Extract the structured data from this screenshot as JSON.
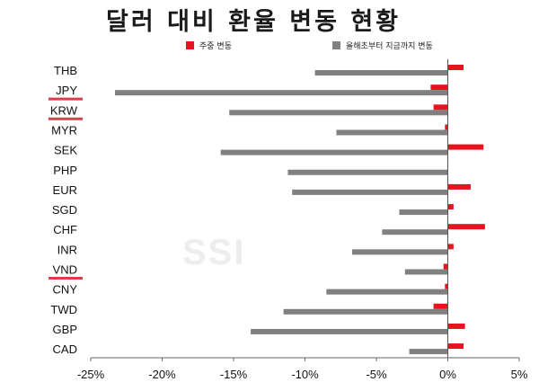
{
  "chart_data": {
    "type": "bar",
    "orientation": "horizontal",
    "title": "달러 대비 환율 변동 현황",
    "categories": [
      "THB",
      "JPY",
      "KRW",
      "MYR",
      "SEK",
      "PHP",
      "EUR",
      "SGD",
      "CHF",
      "INR",
      "VND",
      "CNY",
      "TWD",
      "GBP",
      "CAD"
    ],
    "highlighted_categories": [
      "JPY",
      "KRW",
      "VND"
    ],
    "series": [
      {
        "name": "주중 변동",
        "color": "#e8131e",
        "values": [
          1.1,
          -1.2,
          -1.0,
          -0.2,
          2.5,
          0.0,
          1.6,
          0.4,
          2.6,
          0.4,
          -0.3,
          -0.2,
          -1.0,
          1.2,
          1.1
        ]
      },
      {
        "name": "올해초부터 지금까지 변동",
        "color": "#808080",
        "values": [
          -9.3,
          -23.3,
          -15.3,
          -7.8,
          -15.9,
          -11.2,
          -10.9,
          -3.4,
          -4.6,
          -6.7,
          -3.0,
          -8.5,
          -11.5,
          -13.8,
          -2.7
        ]
      }
    ],
    "xlim": [
      -25,
      5
    ],
    "xticks": [
      -25,
      -20,
      -15,
      -10,
      -5,
      0,
      5
    ],
    "xtick_labels": [
      "-25%",
      "-20%",
      "-15%",
      "-10%",
      "-5%",
      "0%",
      "5%"
    ],
    "legend_position": "top",
    "grid": false,
    "highlight_color": "#e03a4e",
    "axis_color": "#666666",
    "label_color": "#111111"
  },
  "watermark": "SSI"
}
